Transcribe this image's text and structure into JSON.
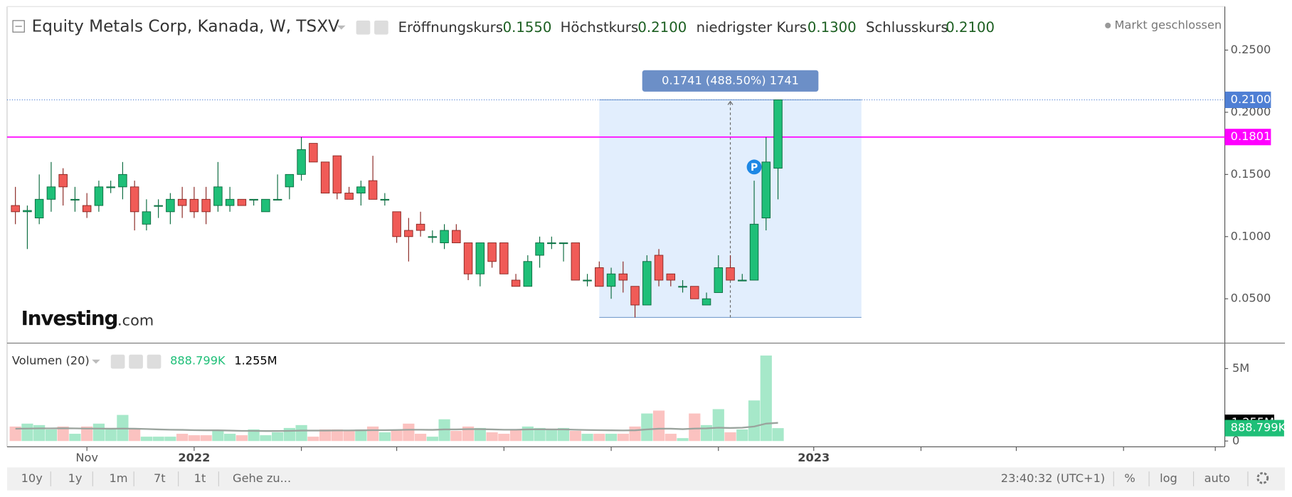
{
  "header": {
    "title": "Equity Metals Corp, Kanada, W, TSXV",
    "open": {
      "label": "Eröffnungskurs",
      "value": "0.1550"
    },
    "high": {
      "label": "Höchstkurs",
      "value": "0.2100"
    },
    "low": {
      "label": "niedrigster Kurs",
      "value": "0.1300"
    },
    "close": {
      "label": "Schlusskurs",
      "value": "0.2100"
    },
    "status": "Markt geschlossen"
  },
  "logo": {
    "brand": "Investing",
    "suffix": ".com"
  },
  "volume_legend": {
    "label": "Volumen (20)",
    "volume": "888.799K",
    "ma": "1.255M"
  },
  "chart_data": {
    "type": "candlestick",
    "ylim": [
      0.015,
      0.285
    ],
    "yticks": [
      {
        "value": 0.05,
        "label": "0.0500"
      },
      {
        "value": 0.1,
        "label": "0.1000"
      },
      {
        "value": 0.15,
        "label": "0.1500"
      },
      {
        "value": 0.2,
        "label": "0.2000"
      },
      {
        "value": 0.25,
        "label": "0.2500"
      }
    ],
    "xlim": [
      -0.7,
      101.5
    ],
    "xticks": [
      {
        "value": 6,
        "label": "Nov"
      },
      {
        "value": 15,
        "label": "2022"
      },
      24,
      32,
      41,
      50,
      59,
      {
        "value": 67,
        "label": "2023"
      },
      76,
      84,
      93,
      100.7
    ],
    "up_color": "#1fbf78",
    "down_color": "#f05b57",
    "open": [
      0.125,
      0.12,
      0.115,
      0.13,
      0.15,
      0.13,
      0.125,
      0.125,
      0.14,
      0.14,
      0.14,
      0.11,
      0.125,
      0.12,
      0.13,
      0.13,
      0.13,
      0.125,
      0.125,
      0.13,
      0.13,
      0.12,
      0.13,
      0.14,
      0.15,
      0.175,
      0.16,
      0.165,
      0.135,
      0.135,
      0.145,
      0.13,
      0.12,
      0.105,
      0.11,
      0.1,
      0.095,
      0.105,
      0.095,
      0.07,
      0.095,
      0.095,
      0.065,
      0.06,
      0.085,
      0.095,
      0.095,
      0.095,
      0.065,
      0.075,
      0.06,
      0.07,
      0.06,
      0.045,
      0.085,
      0.07,
      0.06,
      0.06,
      0.045,
      0.055,
      0.075,
      0.065,
      0.065,
      0.115,
      0.155
    ],
    "high": [
      0.14,
      0.125,
      0.15,
      0.16,
      0.155,
      0.14,
      0.135,
      0.145,
      0.145,
      0.16,
      0.145,
      0.13,
      0.13,
      0.135,
      0.14,
      0.14,
      0.14,
      0.16,
      0.14,
      0.13,
      0.13,
      0.13,
      0.15,
      0.15,
      0.18,
      0.175,
      0.16,
      0.165,
      0.14,
      0.145,
      0.165,
      0.135,
      0.12,
      0.115,
      0.12,
      0.105,
      0.11,
      0.11,
      0.095,
      0.095,
      0.095,
      0.095,
      0.07,
      0.085,
      0.1,
      0.1,
      0.095,
      0.095,
      0.07,
      0.08,
      0.075,
      0.08,
      0.06,
      0.085,
      0.09,
      0.07,
      0.065,
      0.06,
      0.055,
      0.085,
      0.085,
      0.07,
      0.145,
      0.18,
      0.21
    ],
    "low": [
      0.11,
      0.09,
      0.11,
      0.12,
      0.125,
      0.12,
      0.115,
      0.12,
      0.135,
      0.13,
      0.105,
      0.105,
      0.115,
      0.11,
      0.115,
      0.115,
      0.11,
      0.12,
      0.12,
      0.125,
      0.125,
      0.12,
      0.13,
      0.13,
      0.145,
      0.16,
      0.135,
      0.13,
      0.13,
      0.125,
      0.13,
      0.125,
      0.095,
      0.08,
      0.1,
      0.095,
      0.09,
      0.095,
      0.065,
      0.06,
      0.075,
      0.07,
      0.06,
      0.06,
      0.075,
      0.09,
      0.08,
      0.065,
      0.06,
      0.06,
      0.05,
      0.055,
      0.035,
      0.045,
      0.06,
      0.06,
      0.055,
      0.05,
      0.045,
      0.055,
      0.065,
      0.065,
      0.065,
      0.105,
      0.13
    ],
    "close": [
      0.12,
      0.121,
      0.13,
      0.14,
      0.14,
      0.13,
      0.12,
      0.14,
      0.14,
      0.15,
      0.12,
      0.12,
      0.125,
      0.13,
      0.125,
      0.12,
      0.12,
      0.14,
      0.13,
      0.125,
      0.13,
      0.13,
      0.13,
      0.15,
      0.17,
      0.16,
      0.135,
      0.135,
      0.13,
      0.14,
      0.13,
      0.13,
      0.1,
      0.1,
      0.105,
      0.1,
      0.105,
      0.095,
      0.07,
      0.095,
      0.08,
      0.07,
      0.06,
      0.08,
      0.095,
      0.095,
      0.095,
      0.065,
      0.065,
      0.06,
      0.07,
      0.065,
      0.045,
      0.08,
      0.065,
      0.065,
      0.06,
      0.05,
      0.05,
      0.075,
      0.065,
      0.065,
      0.11,
      0.16,
      0.21
    ],
    "hline": {
      "value": 0.1801,
      "label": "0.1801",
      "color": "#ff00ff"
    },
    "last_price_color": "#4f7fd4",
    "measure": {
      "label": "0.1741 (488.50%) 1741",
      "high": 0.21,
      "low": 0.035,
      "start": 49,
      "end": 71
    },
    "markers": [
      {
        "label": "P",
        "index": 62,
        "value": 0.156
      }
    ],
    "volume": {
      "ylim": [
        -400000,
        6700000
      ],
      "yticks": [
        0,
        {
          "value": 5000000,
          "label": "5M"
        }
      ],
      "up_color": "#a6e8c9",
      "down_color": "#fbc2c0",
      "ma_color": "#9aa39d",
      "values": [
        1000000,
        1200000,
        1100000,
        800000,
        1000000,
        500000,
        1000000,
        1200000,
        800000,
        1800000,
        800000,
        300000,
        300000,
        300000,
        500000,
        400000,
        400000,
        700000,
        500000,
        400000,
        800000,
        400000,
        600000,
        900000,
        1100000,
        300000,
        800000,
        800000,
        700000,
        800000,
        1000000,
        600000,
        800000,
        1200000,
        500000,
        300000,
        1500000,
        700000,
        1000000,
        900000,
        600000,
        500000,
        800000,
        1000000,
        900000,
        800000,
        900000,
        700000,
        500000,
        500000,
        500000,
        500000,
        1000000,
        1900000,
        2100000,
        500000,
        200000,
        1900000,
        1100000,
        2200000,
        600000,
        800000,
        2800000,
        5900000,
        888799
      ],
      "value_labels": {
        "64": "888.799K"
      },
      "ma": [
        850000,
        860000,
        870000,
        870000,
        880000,
        870000,
        860000,
        860000,
        850000,
        860000,
        850000,
        830000,
        800000,
        780000,
        770000,
        750000,
        740000,
        740000,
        720000,
        700000,
        700000,
        690000,
        690000,
        700000,
        720000,
        720000,
        720000,
        730000,
        730000,
        740000,
        750000,
        750000,
        760000,
        780000,
        780000,
        770000,
        800000,
        800000,
        820000,
        820000,
        800000,
        780000,
        780000,
        800000,
        810000,
        800000,
        800000,
        780000,
        760000,
        750000,
        740000,
        730000,
        740000,
        800000,
        850000,
        850000,
        820000,
        860000,
        870000,
        920000,
        900000,
        920000,
        1000000,
        1200000,
        1255000
      ],
      "ma_label": "1.255M"
    }
  },
  "toolbar": {
    "ranges": [
      "10y",
      "1y",
      "1m",
      "7t",
      "1t"
    ],
    "goto": "Gehe zu...",
    "time": "23:40:32 (UTC+1)",
    "options": [
      "%",
      "log",
      "auto"
    ]
  }
}
